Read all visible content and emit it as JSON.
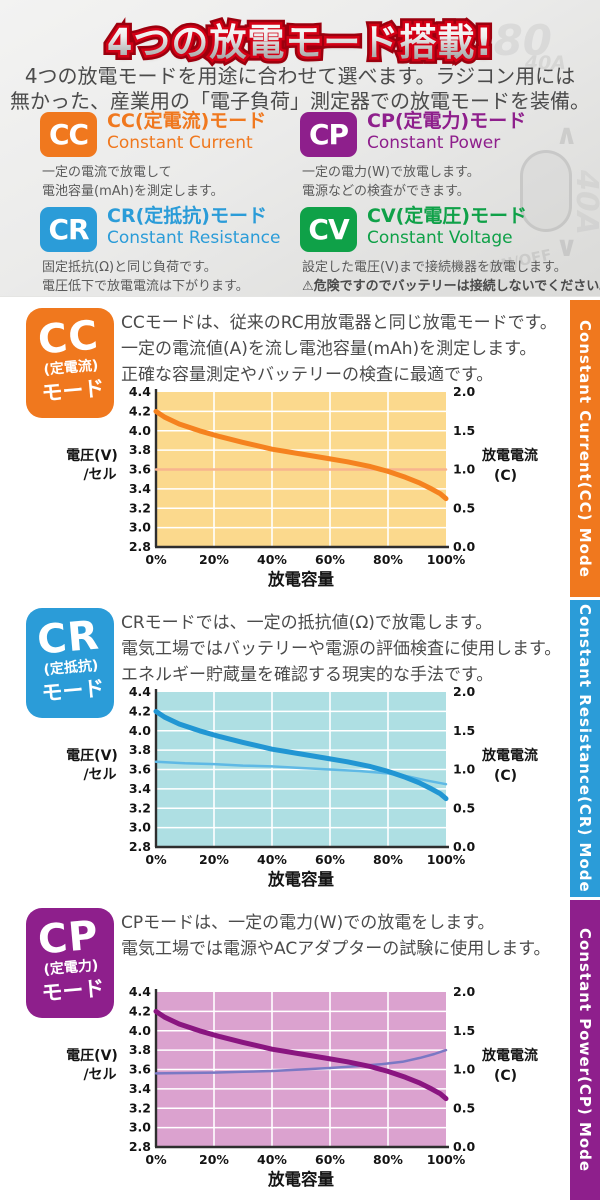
{
  "hero": {
    "title": "4つの放電モード搭載!",
    "intro": [
      "4つの放電モードを用途に合わせて選べます。ラジコン用には",
      "無かった、産業用の「電子負荷」測定器での放電モードを装備。"
    ],
    "watermark": {
      "display": "0380",
      "amp_small": "40A",
      "up_arrow": "∧",
      "down_arrow": "∨",
      "switch_label": "ON/OFF",
      "amp_big": "40A"
    },
    "modes": [
      {
        "id": "cc",
        "badge": "CC",
        "color": "#f0781e",
        "title": "CC(定電流)モード",
        "subtitle": "Constant Current",
        "desc": [
          "一定の電流で放電して",
          "電池容量(mAh)を測定します。"
        ]
      },
      {
        "id": "cp",
        "badge": "CP",
        "color": "#8e1f8c",
        "title": "CP(定電力)モード",
        "subtitle": "Constant Power",
        "desc": [
          "一定の電力(W)で放電します。",
          "電源などの検査ができます。"
        ]
      },
      {
        "id": "cr",
        "badge": "CR",
        "color": "#2b9cd8",
        "title": "CR(定抵抗)モード",
        "subtitle": "Constant Resistance",
        "desc": [
          "固定抵抗(Ω)と同じ負荷です。",
          "電圧低下で放電電流は下がります。"
        ]
      },
      {
        "id": "cv",
        "badge": "CV",
        "color": "#0fa148",
        "title": "CV(定電圧)モード",
        "subtitle": "Constant Voltage",
        "desc": [
          "設定した電圧(V)まで接続機器を放電します。",
          "⚠危険ですのでバッテリーは接続しないでください。"
        ]
      }
    ]
  },
  "sections": [
    {
      "id": "cc",
      "color": "#f0781e",
      "badge": {
        "line1": "CC",
        "line2": "(定電流)",
        "line3": "モード"
      },
      "paragraph": [
        "CCモードは、従来のRC用放電器と同じ放電モードです。",
        "一定の電流値(A)を流し電池容量(mAh)を測定します。",
        "正確な容量測定やバッテリーの検査に最適です。"
      ],
      "side_label": "Constant Current(CC) Mode"
    },
    {
      "id": "cr",
      "color": "#2b9cd8",
      "badge": {
        "line1": "CR",
        "line2": "(定抵抗)",
        "line3": "モード"
      },
      "paragraph": [
        "CRモードでは、一定の抵抗値(Ω)で放電します。",
        "電気工場ではバッテリーや電源の評価検査に使用します。",
        "エネルギー貯蔵量を確認する現実的な手法です。"
      ],
      "side_label": "Constant Resistance(CR) Mode"
    },
    {
      "id": "cp",
      "color": "#8e1f8c",
      "badge": {
        "line1": "CP",
        "line2": "(定電力)",
        "line3": "モード"
      },
      "paragraph": [
        "CPモードは、一定の電力(W)での放電をします。",
        "電気工場では電源やACアダプターの試験に使用します。"
      ],
      "side_label": "Constant Power(CP) Mode"
    }
  ],
  "chart_data": [
    {
      "type": "line",
      "mode": "CC",
      "xlabel": "放電容量",
      "ylabel_left": [
        "電圧(V)",
        "/セル"
      ],
      "ylabel_right": [
        "放電電流",
        "(C)"
      ],
      "x_ticks": [
        "0%",
        "20%",
        "40%",
        "60%",
        "80%",
        "100%"
      ],
      "y_left_ticks": [
        "4.4",
        "4.2",
        "4.0",
        "3.8",
        "3.6",
        "3.4",
        "3.2",
        "3.0",
        "2.8"
      ],
      "y_right_ticks": [
        "2.0",
        "1.5",
        "1.0",
        "0.5",
        "0.0"
      ],
      "x_range": [
        0,
        100
      ],
      "y_left_range": [
        2.8,
        4.4
      ],
      "y_right_range": [
        0.0,
        2.0
      ],
      "grid": true,
      "legend": false,
      "plot_bg": "#fbd98d",
      "series": [
        {
          "name": "放電電流(C)",
          "axis": "right",
          "color": "#f8b48e",
          "width": 2.5,
          "x": [
            0,
            100
          ],
          "y": [
            1.0,
            1.0
          ]
        },
        {
          "name": "電圧(V)/セル",
          "axis": "left",
          "color": "#f5821f",
          "width": 5,
          "x": [
            0,
            3,
            8,
            15,
            22,
            30,
            40,
            50,
            58,
            66,
            74,
            80,
            86,
            91,
            95,
            98,
            100
          ],
          "y": [
            4.2,
            4.14,
            4.07,
            4.0,
            3.94,
            3.88,
            3.81,
            3.76,
            3.72,
            3.68,
            3.63,
            3.58,
            3.52,
            3.46,
            3.4,
            3.35,
            3.3
          ]
        }
      ]
    },
    {
      "type": "line",
      "mode": "CR",
      "xlabel": "放電容量",
      "ylabel_left": [
        "電圧(V)",
        "/セル"
      ],
      "ylabel_right": [
        "放電電流",
        "(C)"
      ],
      "x_ticks": [
        "0%",
        "20%",
        "40%",
        "60%",
        "80%",
        "100%"
      ],
      "y_left_ticks": [
        "4.4",
        "4.2",
        "4.0",
        "3.8",
        "3.6",
        "3.4",
        "3.2",
        "3.0",
        "2.8"
      ],
      "y_right_ticks": [
        "2.0",
        "1.5",
        "1.0",
        "0.5",
        "0.0"
      ],
      "x_range": [
        0,
        100
      ],
      "y_left_range": [
        2.8,
        4.4
      ],
      "y_right_range": [
        0.0,
        2.0
      ],
      "grid": true,
      "legend": false,
      "plot_bg": "#aedfe3",
      "series": [
        {
          "name": "放電電流(C)",
          "axis": "right",
          "color": "#5fb9e5",
          "width": 2.5,
          "x": [
            0,
            10,
            20,
            30,
            40,
            50,
            60,
            70,
            80,
            87,
            93,
            100
          ],
          "y": [
            1.1,
            1.08,
            1.07,
            1.05,
            1.04,
            1.02,
            1.0,
            0.98,
            0.95,
            0.91,
            0.86,
            0.81
          ]
        },
        {
          "name": "電圧(V)/セル",
          "axis": "left",
          "color": "#2196d3",
          "width": 5,
          "x": [
            0,
            3,
            8,
            15,
            22,
            30,
            40,
            50,
            58,
            66,
            74,
            80,
            86,
            91,
            95,
            98,
            100
          ],
          "y": [
            4.2,
            4.14,
            4.07,
            4.0,
            3.94,
            3.88,
            3.81,
            3.76,
            3.72,
            3.68,
            3.63,
            3.58,
            3.52,
            3.46,
            3.4,
            3.35,
            3.3
          ]
        }
      ]
    },
    {
      "type": "line",
      "mode": "CP",
      "xlabel": "放電容量",
      "ylabel_left": [
        "電圧(V)",
        "/セル"
      ],
      "ylabel_right": [
        "放電電流",
        "(C)"
      ],
      "x_ticks": [
        "0%",
        "20%",
        "40%",
        "60%",
        "80%",
        "100%"
      ],
      "y_left_ticks": [
        "4.4",
        "4.2",
        "4.0",
        "3.8",
        "3.6",
        "3.4",
        "3.2",
        "3.0",
        "2.8"
      ],
      "y_right_ticks": [
        "2.0",
        "1.5",
        "1.0",
        "0.5",
        "0.0"
      ],
      "x_range": [
        0,
        100
      ],
      "y_left_range": [
        2.8,
        4.4
      ],
      "y_right_range": [
        0.0,
        2.0
      ],
      "grid": true,
      "legend": false,
      "plot_bg": "#dba2cf",
      "series": [
        {
          "name": "放電電流(C)",
          "axis": "right",
          "color": "#7a78c4",
          "width": 2.5,
          "x": [
            0,
            10,
            20,
            30,
            40,
            50,
            60,
            70,
            78,
            85,
            91,
            96,
            100
          ],
          "y": [
            0.95,
            0.955,
            0.96,
            0.97,
            0.98,
            1.0,
            1.02,
            1.045,
            1.07,
            1.1,
            1.15,
            1.2,
            1.25
          ]
        },
        {
          "name": "電圧(V)/セル",
          "axis": "left",
          "color": "#8a1580",
          "width": 5,
          "x": [
            0,
            3,
            8,
            15,
            22,
            30,
            40,
            50,
            58,
            66,
            74,
            80,
            86,
            91,
            95,
            98,
            100
          ],
          "y": [
            4.2,
            4.14,
            4.07,
            4.0,
            3.94,
            3.88,
            3.81,
            3.76,
            3.72,
            3.68,
            3.63,
            3.58,
            3.52,
            3.46,
            3.4,
            3.35,
            3.3
          ]
        }
      ]
    }
  ]
}
